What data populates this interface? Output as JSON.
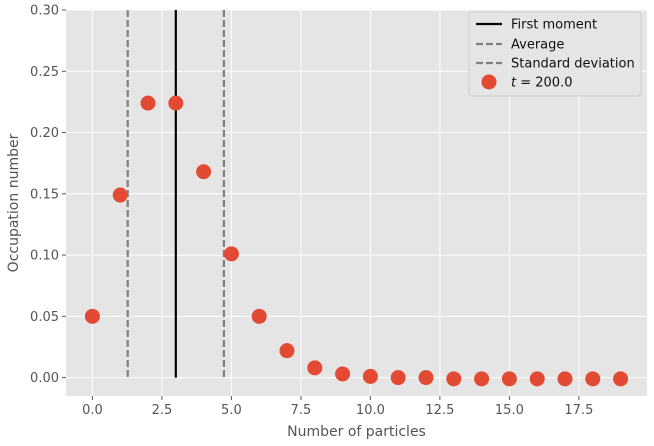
{
  "chart_data": {
    "type": "scatter",
    "xlabel": "Number of particles",
    "ylabel": "Occupation number",
    "xlim": [
      -0.95,
      19.95
    ],
    "ylim": [
      -0.015,
      0.3
    ],
    "x_ticks": [
      0.0,
      2.5,
      5.0,
      7.5,
      10.0,
      12.5,
      15.0,
      17.5
    ],
    "x_tick_labels": [
      "0.0",
      "2.5",
      "5.0",
      "7.5",
      "10.0",
      "12.5",
      "15.0",
      "17.5"
    ],
    "y_ticks": [
      0.0,
      0.05,
      0.1,
      0.15,
      0.2,
      0.25,
      0.3
    ],
    "y_tick_labels": [
      "0.00",
      "0.05",
      "0.10",
      "0.15",
      "0.20",
      "0.25",
      "0.30"
    ],
    "grid": true,
    "legend_position": "top-right",
    "lines": {
      "first_moment": {
        "label": "First moment",
        "x": 3.0,
        "color": "#000000",
        "style": "solid"
      },
      "average": {
        "label": "Average",
        "x": 1.27,
        "color": "#808080",
        "style": "dashed"
      },
      "std_dev": {
        "label": "Standard deviation",
        "x": 4.73,
        "color": "#808080",
        "style": "dashed"
      }
    },
    "series": [
      {
        "name": "t = 200.0",
        "legend_italic": "t",
        "legend_rest": " = 200.0",
        "color": "#E24A33",
        "x": [
          0,
          1,
          2,
          3,
          4,
          5,
          6,
          7,
          8,
          9,
          10,
          11,
          12,
          13,
          14,
          15,
          16,
          17,
          18,
          19
        ],
        "values": [
          0.05,
          0.149,
          0.224,
          0.224,
          0.168,
          0.101,
          0.05,
          0.022,
          0.008,
          0.003,
          0.001,
          0.0,
          0.0,
          -0.001,
          -0.001,
          -0.001,
          -0.001,
          -0.001,
          -0.001,
          -0.001
        ]
      }
    ],
    "colors": {
      "background": "#E5E5E5",
      "grid": "#FFFFFF"
    }
  }
}
